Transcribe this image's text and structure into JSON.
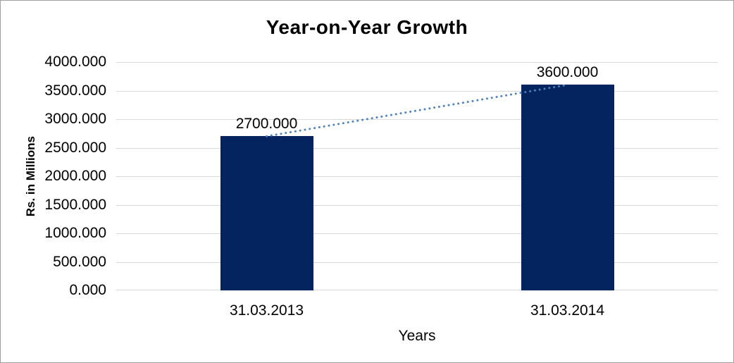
{
  "chart_data": {
    "type": "bar",
    "title": "Year-on-Year Growth",
    "xlabel": "Years",
    "ylabel": "Rs. in Millions",
    "categories": [
      "31.03.2013",
      "31.03.2014"
    ],
    "values": [
      2700,
      3600
    ],
    "data_labels": [
      "2700.000",
      "3600.000"
    ],
    "y_tick_labels": [
      "0.000",
      "500.000",
      "1000.000",
      "1500.000",
      "2000.000",
      "2500.000",
      "3000.000",
      "3500.000",
      "4000.000"
    ],
    "ylim": [
      0,
      4000
    ],
    "y_tick_step": 500,
    "grid": true,
    "legend": false,
    "trendline": true,
    "colors": {
      "bar": "#03245f",
      "trendline": "#4f81bd",
      "gridline": "#d9d9d9",
      "text": "#000000",
      "background": "#ffffff"
    }
  }
}
